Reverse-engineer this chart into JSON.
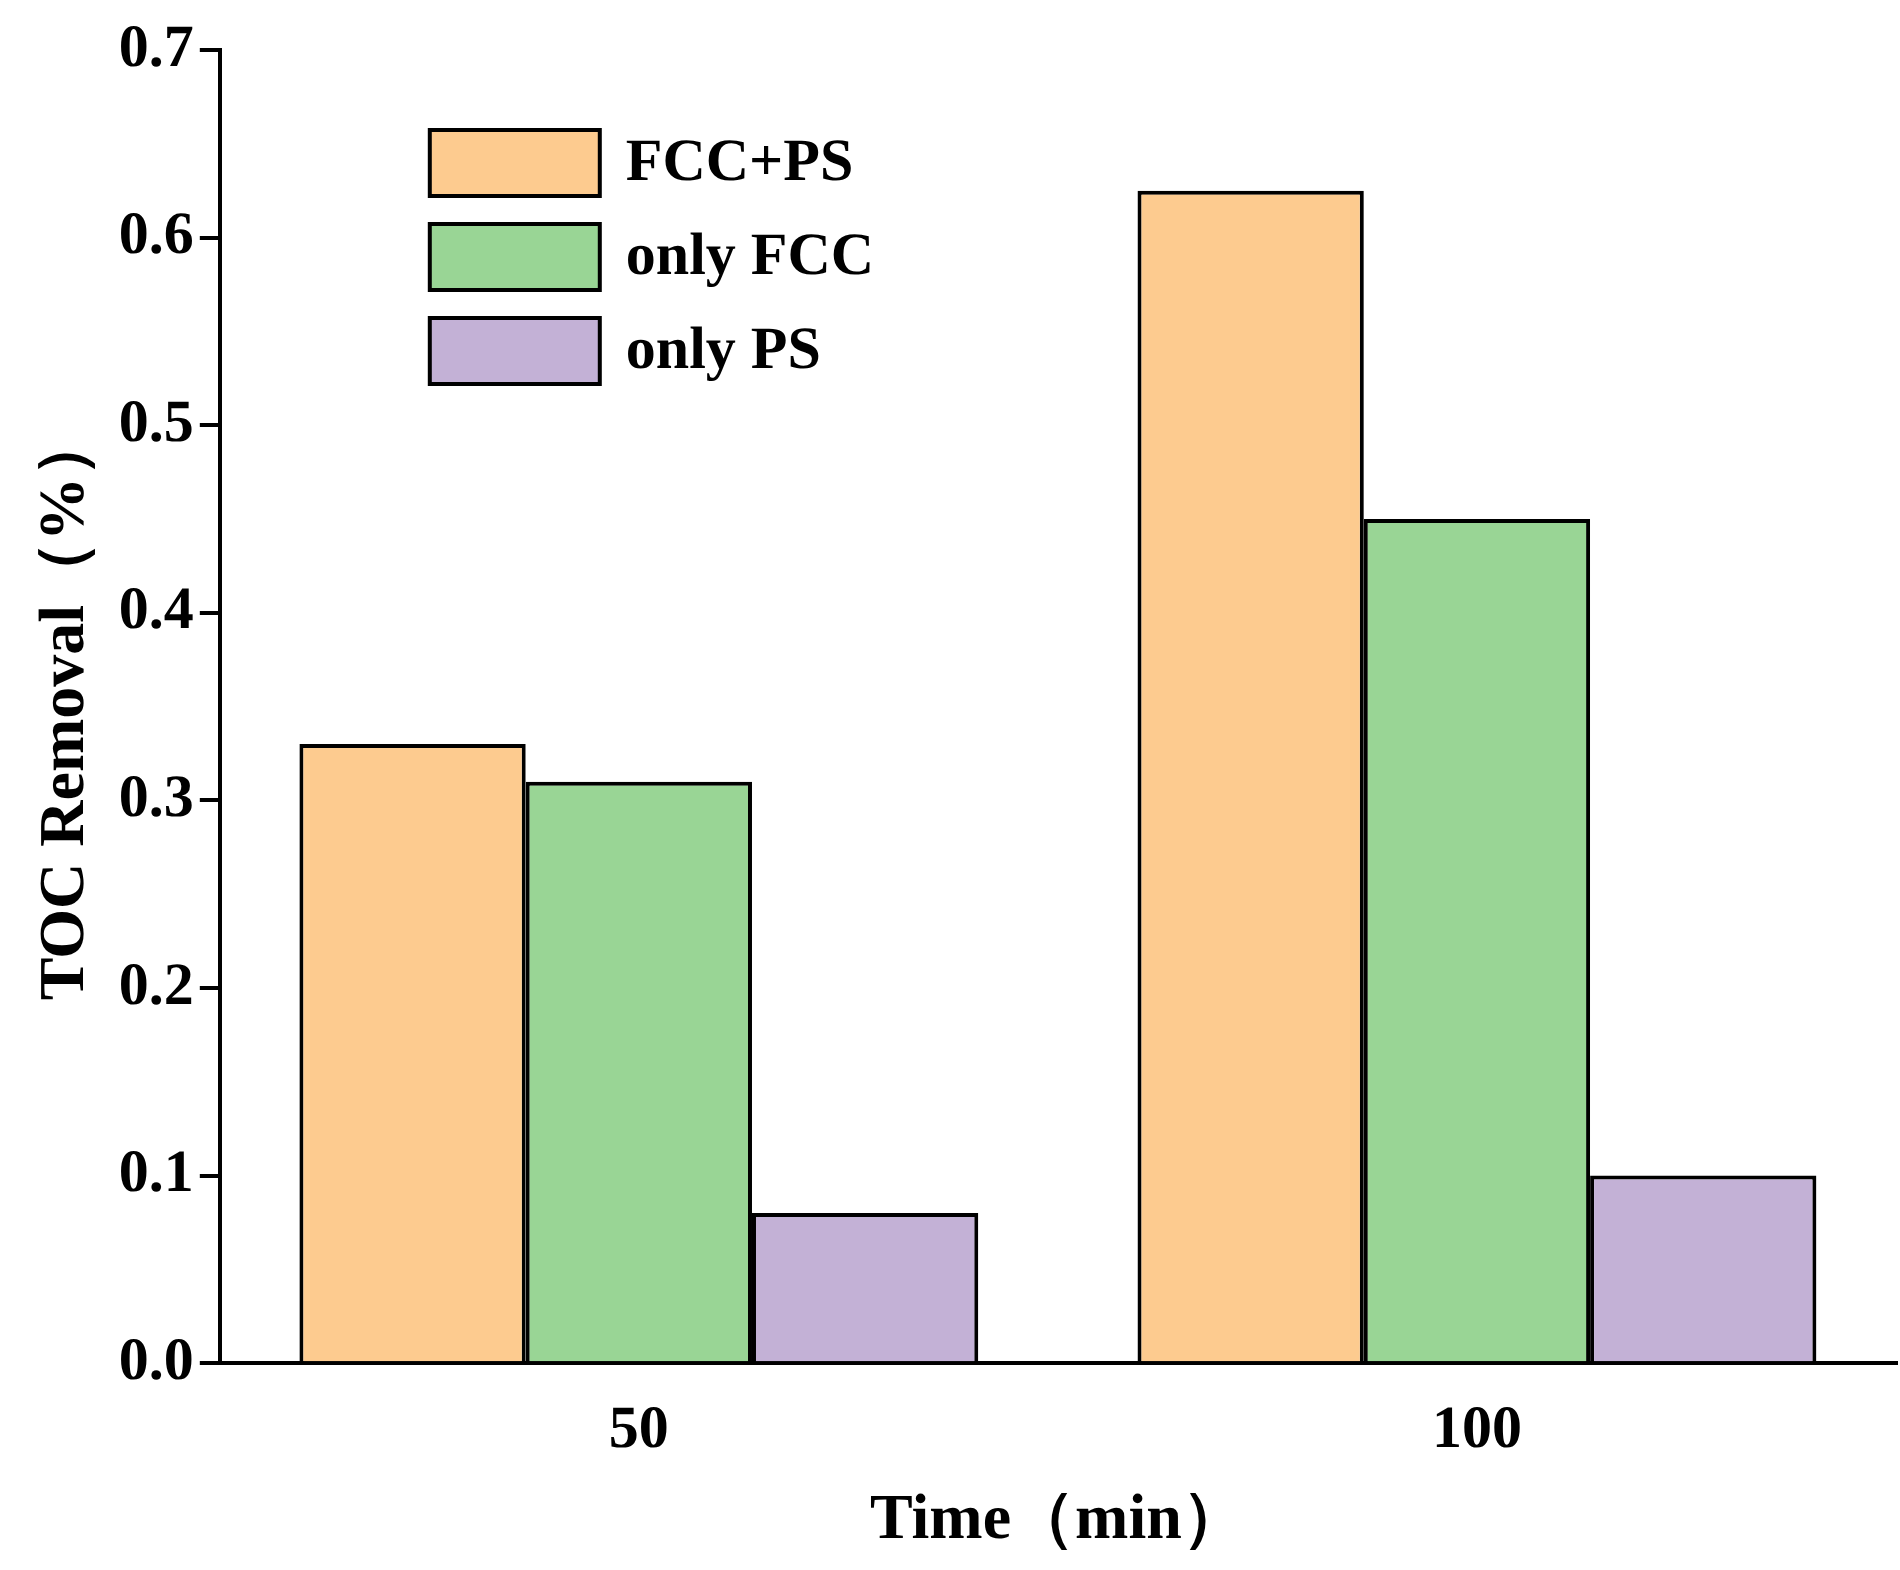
{
  "chart_data": {
    "type": "bar",
    "xlabel": "Time（min）",
    "ylabel": "TOC Removal（%）",
    "categories": [
      "50",
      "100"
    ],
    "series": [
      {
        "name": "FCC+PS",
        "color": "#fdcb8f",
        "values": [
          0.33,
          0.625
        ]
      },
      {
        "name": "only FCC",
        "color": "#99d595",
        "values": [
          0.31,
          0.45
        ]
      },
      {
        "name": "only PS",
        "color": "#c3b1d6",
        "values": [
          0.08,
          0.1
        ]
      }
    ],
    "ylim": [
      0,
      0.7
    ],
    "yticks": [
      {
        "value": 0,
        "label": "0.0"
      },
      0.1,
      0.2,
      0.3,
      0.4,
      0.5,
      0.6,
      0.7
    ],
    "grid": false,
    "legend": "top left"
  }
}
